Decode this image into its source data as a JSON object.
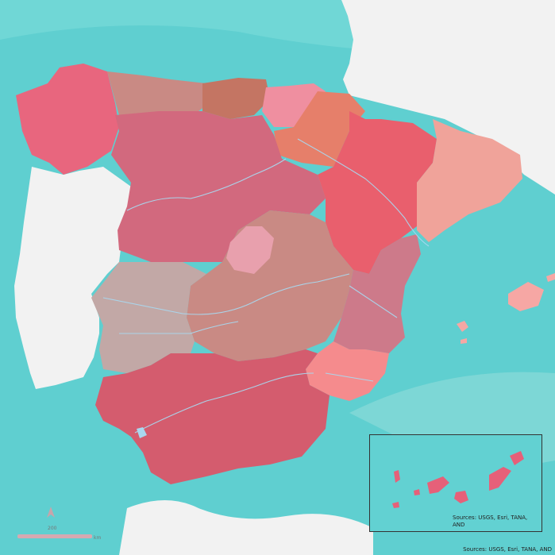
{
  "map": {
    "attribution": "Sources: USGS, Esri, TANA, AND",
    "inset_attribution": "Sources: USGS, Esri, TANA, AND",
    "scale": {
      "value_label": "200",
      "unit": "km"
    },
    "colors": {
      "sea": "#5fcfd0",
      "land": "#f2f2f2",
      "river": "#a9d8ef",
      "galicia": "#e8667e",
      "cantabrico_occ": "#c98a84",
      "cantabrico_or": "#c47563",
      "pais_vasco": "#ef8fa0",
      "duero": "#d2697e",
      "ebro_upper": "#e67f6a",
      "ebro_main": "#e95f6d",
      "ebro_north": "#e9b0a8",
      "cataluna": "#f0a39a",
      "tajo": "#c98a84",
      "madrid": "#e8a0ad",
      "guadiana": "#c2a8a6",
      "jucar": "#cd7a8a",
      "segura": "#f58b8d",
      "guadalquivir": "#d45c6e",
      "baleares": "#f6a7a4",
      "canarias": "#e66079"
    }
  }
}
